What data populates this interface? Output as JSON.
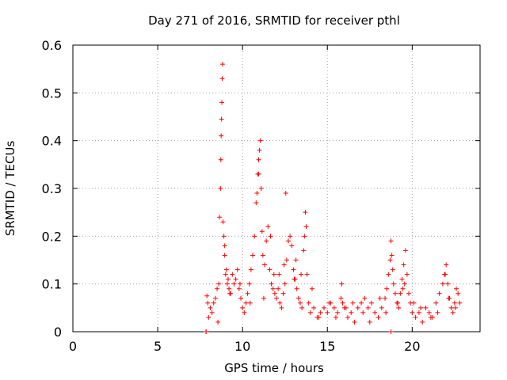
{
  "chart_data": {
    "type": "scatter",
    "title": "Day 271 of 2016, SRMTID for receiver pthl",
    "xlabel": "GPS time / hours",
    "ylabel": "SRMTID / TECUs",
    "xlim": [
      0,
      24
    ],
    "ylim": [
      0,
      0.6
    ],
    "xticks": [
      0,
      5,
      10,
      15,
      20
    ],
    "yticks": [
      0,
      0.1,
      0.2,
      0.3,
      0.4,
      0.5,
      0.6
    ],
    "grid": true,
    "marker": "+",
    "color": "#ff0000",
    "series": [
      {
        "name": "SRMTID",
        "x": [
          7.85,
          7.9,
          7.95,
          8.0,
          8.1,
          8.2,
          8.3,
          8.4,
          8.5,
          8.6,
          8.65,
          8.7,
          8.72,
          8.74,
          8.76,
          8.78,
          8.8,
          8.82,
          8.85,
          8.9,
          8.95,
          9.0,
          9.05,
          9.1,
          9.2,
          9.3,
          9.4,
          9.5,
          9.6,
          9.7,
          9.8,
          9.9,
          10.0,
          10.1,
          10.2,
          10.3,
          10.4,
          10.5,
          10.6,
          10.7,
          10.8,
          10.85,
          10.9,
          10.95,
          11.0,
          11.05,
          11.1,
          11.15,
          11.2,
          11.3,
          11.4,
          11.5,
          11.6,
          11.7,
          11.8,
          11.9,
          12.0,
          12.1,
          12.2,
          12.3,
          12.4,
          12.5,
          12.6,
          12.7,
          12.8,
          12.9,
          13.0,
          13.1,
          13.2,
          13.3,
          13.4,
          13.5,
          13.6,
          13.65,
          13.7,
          13.75,
          13.8,
          13.9,
          14.0,
          14.2,
          14.4,
          14.6,
          14.8,
          15.0,
          15.2,
          15.4,
          15.6,
          15.8,
          15.85,
          15.9,
          16.0,
          16.2,
          16.4,
          16.6,
          16.8,
          17.0,
          17.2,
          17.4,
          17.6,
          17.8,
          18.0,
          18.2,
          18.4,
          18.5,
          18.6,
          18.7,
          18.75,
          18.8,
          18.85,
          18.9,
          19.0,
          19.1,
          19.2,
          19.3,
          19.4,
          19.5,
          19.6,
          19.7,
          19.8,
          19.9,
          20.0,
          20.2,
          20.4,
          20.6,
          20.8,
          21.0,
          21.2,
          21.4,
          21.6,
          21.8,
          21.9,
          22.0,
          22.1,
          22.2,
          22.3,
          22.4,
          22.5,
          22.6,
          22.7,
          22.8,
          7.85,
          8.55,
          9.25,
          9.85,
          10.45,
          11.25,
          11.85,
          12.45,
          13.05,
          14.1,
          14.5,
          15.1,
          15.5,
          16.1,
          16.5,
          17.1,
          17.5,
          18.1,
          18.45,
          19.15,
          19.55,
          20.1,
          20.5,
          21.1,
          21.5,
          22.15,
          22.55,
          8.95,
          10.95,
          12.15,
          13.15,
          13.45,
          18.75,
          19.45,
          21.95,
          12.55,
          9.15,
          11.65
        ],
        "y": [
          0.0,
          0.075,
          0.06,
          0.03,
          0.05,
          0.04,
          0.06,
          0.07,
          0.09,
          0.1,
          0.24,
          0.3,
          0.36,
          0.41,
          0.445,
          0.48,
          0.53,
          0.56,
          0.23,
          0.2,
          0.16,
          0.12,
          0.13,
          0.1,
          0.09,
          0.08,
          0.12,
          0.1,
          0.11,
          0.13,
          0.09,
          0.07,
          0.05,
          0.04,
          0.06,
          0.08,
          0.1,
          0.13,
          0.16,
          0.2,
          0.27,
          0.29,
          0.33,
          0.36,
          0.38,
          0.4,
          0.3,
          0.21,
          0.16,
          0.14,
          0.19,
          0.22,
          0.13,
          0.1,
          0.09,
          0.08,
          0.07,
          0.09,
          0.06,
          0.05,
          0.08,
          0.1,
          0.15,
          0.19,
          0.2,
          0.18,
          0.13,
          0.11,
          0.09,
          0.07,
          0.06,
          0.05,
          0.17,
          0.2,
          0.25,
          0.22,
          0.12,
          0.06,
          0.04,
          0.05,
          0.03,
          0.04,
          0.05,
          0.04,
          0.06,
          0.05,
          0.04,
          0.07,
          0.1,
          0.06,
          0.05,
          0.03,
          0.04,
          0.02,
          0.05,
          0.06,
          0.07,
          0.05,
          0.06,
          0.04,
          0.03,
          0.05,
          0.07,
          0.09,
          0.12,
          0.15,
          0.19,
          0.16,
          0.13,
          0.1,
          0.08,
          0.06,
          0.05,
          0.08,
          0.11,
          0.14,
          0.17,
          0.12,
          0.08,
          0.06,
          0.04,
          0.03,
          0.04,
          0.02,
          0.05,
          0.04,
          0.03,
          0.06,
          0.08,
          0.1,
          0.12,
          0.14,
          0.1,
          0.07,
          0.05,
          0.04,
          0.06,
          0.09,
          0.08,
          0.06,
          0.0,
          0.02,
          0.08,
          0.1,
          0.06,
          0.07,
          0.12,
          0.14,
          0.11,
          0.09,
          0.03,
          0.06,
          0.03,
          0.05,
          0.06,
          0.04,
          0.02,
          0.07,
          0.04,
          0.06,
          0.1,
          0.06,
          0.05,
          0.03,
          0.04,
          0.07,
          0.05,
          0.18,
          0.33,
          0.12,
          0.15,
          0.12,
          0.0,
          0.09,
          0.12,
          0.29,
          0.11,
          0.2
        ]
      }
    ]
  }
}
